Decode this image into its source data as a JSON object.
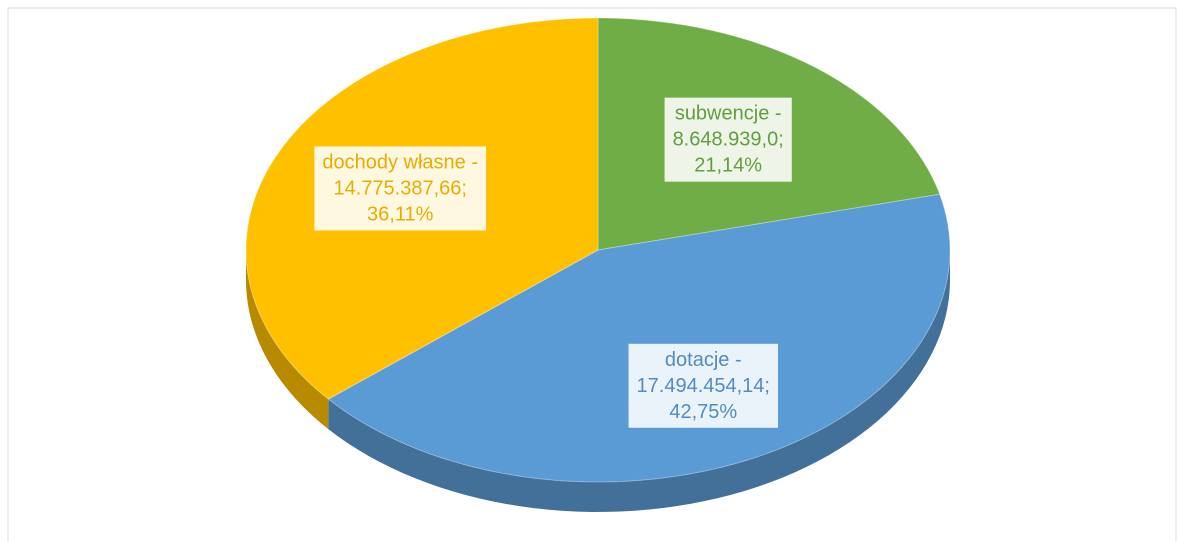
{
  "chart_data": {
    "type": "pie3d",
    "categories": [
      "subwencje -",
      "dotacje -",
      "dochody własne -"
    ],
    "amounts": [
      8648939.0,
      17494454.14,
      14775387.66
    ],
    "amount_labels": [
      "8.648.939,0;",
      "17.494.454,14;",
      "14.775.387,66;"
    ],
    "values": [
      21.14,
      42.75,
      36.11
    ],
    "value_labels": [
      "21,14%",
      "42,75%",
      "36,11%"
    ],
    "colors": [
      "#70ad47",
      "#5b9bd5",
      "#ffc000"
    ]
  }
}
